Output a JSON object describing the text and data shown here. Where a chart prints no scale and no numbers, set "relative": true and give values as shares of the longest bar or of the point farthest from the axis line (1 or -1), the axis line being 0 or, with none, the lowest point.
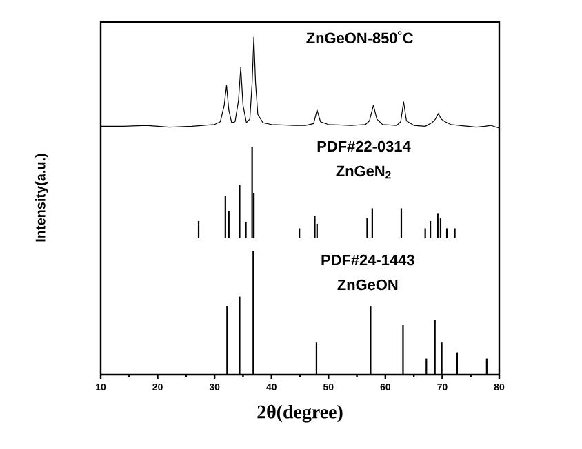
{
  "chart_data": [
    {
      "type": "line",
      "title": "ZnGeON-850˚C",
      "relative": true,
      "xlim": [
        10,
        80
      ],
      "color": "#000000",
      "x": [
        10,
        14,
        18,
        22,
        26,
        28,
        30,
        31,
        31.7,
        32.1,
        32.5,
        33.0,
        33.6,
        34.2,
        34.6,
        35.0,
        35.6,
        36.2,
        36.6,
        36.9,
        37.2,
        37.6,
        38.5,
        40,
        44,
        46,
        47.4,
        48.0,
        48.6,
        50,
        54,
        56.5,
        57.2,
        57.9,
        58.5,
        59.5,
        62,
        62.7,
        63.2,
        63.7,
        65,
        67,
        68.2,
        68.8,
        69.3,
        69.8,
        70.5,
        71.5,
        73,
        76,
        77.5,
        78.5,
        80
      ],
      "values": [
        0.02,
        0.02,
        0.03,
        0.01,
        0.02,
        0.03,
        0.04,
        0.07,
        0.25,
        0.47,
        0.2,
        0.06,
        0.07,
        0.3,
        0.67,
        0.25,
        0.06,
        0.1,
        0.5,
        1.0,
        0.5,
        0.15,
        0.06,
        0.04,
        0.03,
        0.03,
        0.05,
        0.2,
        0.07,
        0.04,
        0.03,
        0.04,
        0.08,
        0.25,
        0.1,
        0.04,
        0.03,
        0.07,
        0.29,
        0.08,
        0.03,
        0.02,
        0.06,
        0.1,
        0.16,
        0.1,
        0.07,
        0.04,
        0.03,
        0.01,
        0.02,
        0.03,
        0.0
      ]
    },
    {
      "type": "bar",
      "title": "PDF#22-0314",
      "subtitle": "ZnGeN$_{2}$",
      "ylabel": "Intensity(a.u.)",
      "relative": true,
      "xlim": [
        10,
        80
      ],
      "color": "#000000",
      "x": [
        27.2,
        31.9,
        32.5,
        34.4,
        35.5,
        36.6,
        36.9,
        44.9,
        47.6,
        48.0,
        56.8,
        57.7,
        62.8,
        67.0,
        67.9,
        69.2,
        69.7,
        70.8,
        72.2
      ],
      "values": [
        0.19,
        0.47,
        0.3,
        0.59,
        0.18,
        1.0,
        0.5,
        0.11,
        0.25,
        0.16,
        0.22,
        0.33,
        0.33,
        0.11,
        0.19,
        0.27,
        0.22,
        0.11,
        0.11
      ]
    },
    {
      "type": "bar",
      "title": "PDF#24-1443",
      "subtitle": "ZnGeON",
      "xlabel": "2θ(degree)",
      "relative": true,
      "xlim": [
        10,
        80
      ],
      "xticks": [
        10,
        20,
        30,
        40,
        50,
        60,
        70,
        80
      ],
      "color": "#000000",
      "x": [
        32.2,
        34.4,
        36.8,
        47.9,
        57.4,
        63.1,
        67.2,
        68.7,
        69.9,
        72.6,
        77.8
      ],
      "values": [
        0.55,
        0.63,
        1.0,
        0.26,
        0.55,
        0.4,
        0.13,
        0.44,
        0.26,
        0.18,
        0.13
      ]
    }
  ]
}
